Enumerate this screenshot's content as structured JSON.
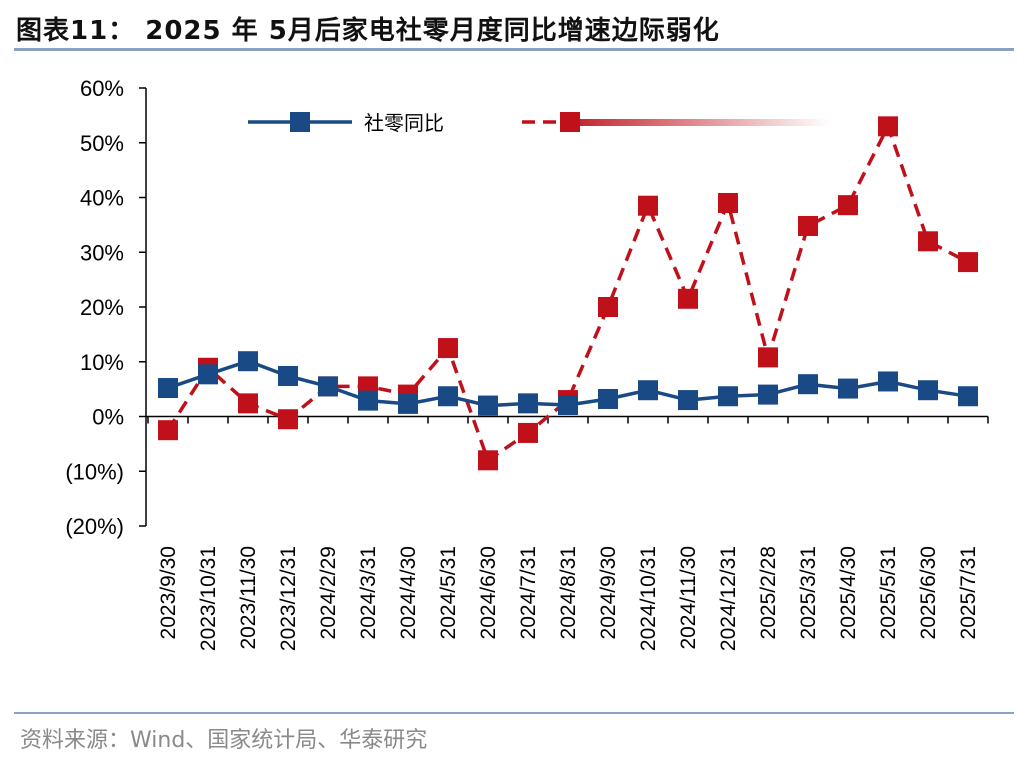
{
  "header": {
    "title": "图表11：  2025 年 5月后家电社零月度同比增速边际弱化"
  },
  "footer": {
    "source": "资料来源：Wind、国家统计局、华泰研究"
  },
  "colors": {
    "series1": "#1a4a85",
    "series2": "#c0101a",
    "rule": "#8aa2bd"
  },
  "chart_data": {
    "type": "line",
    "title": "",
    "xlabel": "",
    "ylabel": "",
    "ylim": [
      -20,
      60
    ],
    "yticks": [
      60,
      50,
      40,
      30,
      20,
      10,
      0,
      -10,
      -20
    ],
    "ytick_labels": [
      "60%",
      "50%",
      "40%",
      "30%",
      "20%",
      "10%",
      "0%",
      "(10%)",
      "(20%)"
    ],
    "categories": [
      "2023/9/30",
      "2023/10/31",
      "2023/11/30",
      "2023/12/31",
      "2024/2/29",
      "2024/3/31",
      "2024/4/30",
      "2024/5/31",
      "2024/6/30",
      "2024/7/31",
      "2024/8/31",
      "2024/9/30",
      "2024/10/31",
      "2024/11/30",
      "2024/12/31",
      "2025/2/28",
      "2025/3/31",
      "2025/4/30",
      "2025/5/31",
      "2025/6/30",
      "2025/7/31"
    ],
    "legend_position": "top",
    "grid": false,
    "series": [
      {
        "name": "社零同比",
        "style": "solid",
        "values": [
          5.2,
          7.7,
          10.1,
          7.4,
          5.5,
          2.9,
          2.3,
          3.7,
          2.0,
          2.4,
          2.1,
          3.2,
          4.8,
          3.0,
          3.7,
          4.0,
          5.9,
          5.1,
          6.4,
          4.8,
          3.7
        ]
      },
      {
        "style": "dashed",
        "values": [
          -2.5,
          8.9,
          2.4,
          -0.5,
          5.5,
          5.5,
          4.0,
          12.5,
          -8.0,
          -3.0,
          3.0,
          20.0,
          38.5,
          21.5,
          39.0,
          10.8,
          34.8,
          38.6,
          53.0,
          32.0,
          28.2
        ]
      }
    ]
  }
}
